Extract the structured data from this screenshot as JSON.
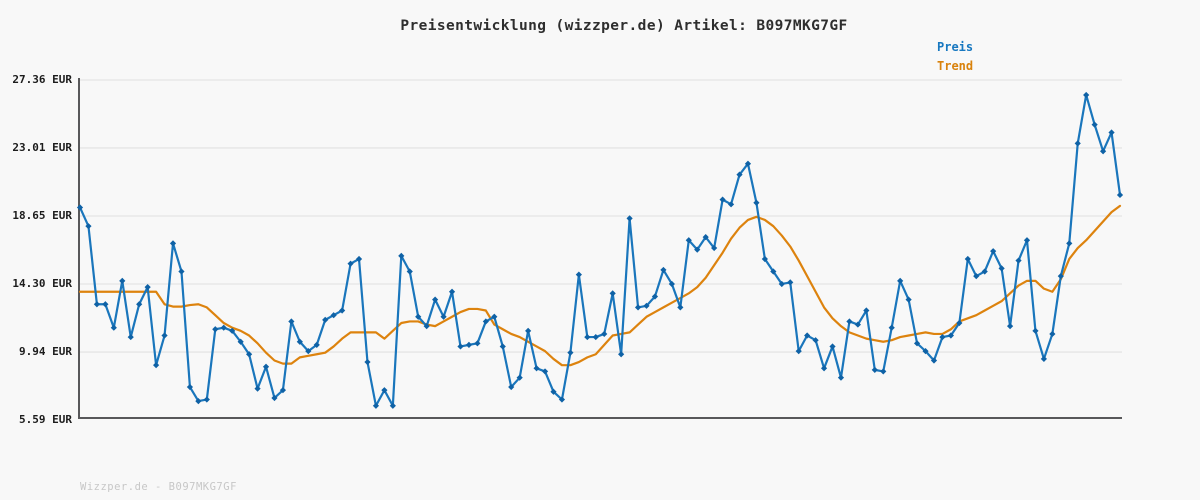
{
  "page": {
    "title": "Preisentwicklung (wizzper.de) Artikel: B097MKG7GF",
    "footer": "Wizzper.de - B097MKG7GF",
    "background": "#f8f8f8"
  },
  "legend": {
    "position": "top-right",
    "items": [
      {
        "label": "Preis",
        "color": "#1878c0"
      },
      {
        "label": "Trend",
        "color": "#d9820c"
      }
    ]
  },
  "axis": {
    "y_unit": "EUR",
    "y_ticks": [
      {
        "value": 27.36,
        "label": "27.36 EUR"
      },
      {
        "value": 23.01,
        "label": "23.01 EUR"
      },
      {
        "value": 18.65,
        "label": "18.65 EUR"
      },
      {
        "value": 14.3,
        "label": "14.30 EUR"
      },
      {
        "value": 9.94,
        "label": "9.94 EUR"
      },
      {
        "value": 5.59,
        "label": "5.59 EUR"
      }
    ],
    "x_labels": []
  },
  "chart_data": {
    "type": "line",
    "title": "Preisentwicklung (wizzper.de) Artikel: B097MKG7GF",
    "xlabel": "",
    "ylabel": "EUR",
    "ylim": [
      5.59,
      27.36
    ],
    "grid": true,
    "legend_position": "top-right",
    "colors": {
      "preis_line": "#1a76bc",
      "preis_marker": "#0f62a6",
      "trend_line": "#dd830e",
      "grid_line": "#e5e5e5",
      "axis_line": "#58585a"
    },
    "series": [
      {
        "name": "Preis",
        "marker": "diamond",
        "values": [
          19.2,
          18.0,
          13.0,
          13.0,
          11.5,
          14.5,
          10.9,
          13.0,
          14.1,
          9.1,
          11.0,
          16.9,
          15.1,
          7.7,
          6.8,
          6.9,
          11.4,
          11.5,
          11.3,
          10.6,
          9.8,
          7.6,
          9.0,
          7.0,
          7.5,
          11.9,
          10.6,
          10.0,
          10.4,
          12.0,
          12.3,
          12.6,
          15.6,
          15.9,
          9.3,
          6.5,
          7.5,
          6.5,
          16.1,
          15.1,
          12.2,
          11.6,
          13.3,
          12.2,
          13.8,
          10.3,
          10.4,
          10.5,
          11.9,
          12.2,
          10.3,
          7.7,
          8.3,
          11.3,
          8.9,
          8.7,
          7.4,
          6.9,
          9.9,
          14.9,
          10.9,
          10.9,
          11.1,
          13.7,
          9.8,
          18.5,
          12.8,
          12.9,
          13.5,
          15.2,
          14.3,
          12.8,
          17.1,
          16.5,
          17.3,
          16.6,
          19.7,
          19.4,
          21.3,
          22.0,
          19.5,
          15.9,
          15.1,
          14.3,
          14.4,
          10.0,
          11.0,
          10.7,
          8.9,
          10.3,
          8.3,
          11.9,
          11.7,
          12.6,
          8.8,
          8.7,
          11.5,
          14.5,
          13.3,
          10.5,
          10.0,
          9.4,
          10.9,
          11.0,
          11.8,
          15.9,
          14.8,
          15.1,
          16.4,
          15.3,
          11.6,
          15.8,
          17.1,
          11.3,
          9.5,
          11.1,
          14.8,
          16.9,
          23.3,
          26.4,
          24.5,
          22.8,
          24.0,
          20.0
        ]
      },
      {
        "name": "Trend",
        "marker": "none",
        "values": [
          13.8,
          13.8,
          13.8,
          13.8,
          13.8,
          13.8,
          13.8,
          13.8,
          13.8,
          13.8,
          13.0,
          12.85,
          12.85,
          12.95,
          13.0,
          12.8,
          12.3,
          11.8,
          11.5,
          11.3,
          11.0,
          10.5,
          9.9,
          9.4,
          9.2,
          9.2,
          9.6,
          9.7,
          9.8,
          9.9,
          10.3,
          10.8,
          11.2,
          11.2,
          11.2,
          11.2,
          10.8,
          11.3,
          11.8,
          11.9,
          11.9,
          11.7,
          11.6,
          11.9,
          12.2,
          12.5,
          12.7,
          12.7,
          12.6,
          11.7,
          11.4,
          11.1,
          10.9,
          10.6,
          10.3,
          10.0,
          9.5,
          9.1,
          9.1,
          9.3,
          9.6,
          9.8,
          10.4,
          11.0,
          11.1,
          11.2,
          11.7,
          12.2,
          12.5,
          12.8,
          13.1,
          13.4,
          13.7,
          14.1,
          14.7,
          15.5,
          16.3,
          17.2,
          17.9,
          18.4,
          18.6,
          18.4,
          18.0,
          17.4,
          16.7,
          15.8,
          14.8,
          13.8,
          12.8,
          12.1,
          11.6,
          11.2,
          11.0,
          10.8,
          10.7,
          10.6,
          10.7,
          10.9,
          11.0,
          11.1,
          11.2,
          11.1,
          11.1,
          11.4,
          11.9,
          12.1,
          12.3,
          12.6,
          12.9,
          13.2,
          13.7,
          14.2,
          14.5,
          14.5,
          14.0,
          13.8,
          14.6,
          15.9,
          16.6,
          17.1,
          17.7,
          18.3,
          18.9,
          19.3
        ]
      }
    ]
  }
}
